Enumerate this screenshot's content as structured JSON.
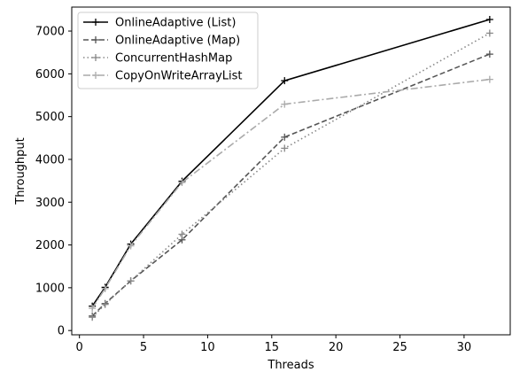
{
  "chart_data": {
    "type": "line",
    "xlabel": "Threads",
    "ylabel": "Throughput",
    "xlim": [
      -0.6,
      33.6
    ],
    "ylim": [
      -100,
      7560
    ],
    "xticks": [
      0,
      5,
      10,
      15,
      20,
      25,
      30
    ],
    "yticks": [
      0,
      1000,
      2000,
      3000,
      4000,
      5000,
      6000,
      7000
    ],
    "legend_position": "top-left",
    "grid": false,
    "x": [
      1,
      2,
      4,
      8,
      16,
      32
    ],
    "series": [
      {
        "name": "OnlineAdaptive (List)",
        "values": [
          570,
          1010,
          2020,
          3490,
          5840,
          7270
        ],
        "color": "#000000",
        "linestyle": "solid"
      },
      {
        "name": "OnlineAdaptive (Map)",
        "values": [
          340,
          630,
          1160,
          2120,
          4520,
          6460
        ],
        "color": "#555555",
        "linestyle": "dashed"
      },
      {
        "name": "ConcurrentHashMap",
        "values": [
          310,
          610,
          1160,
          2250,
          4260,
          6950
        ],
        "color": "#888888",
        "linestyle": "dotted"
      },
      {
        "name": "CopyOnWriteArrayList",
        "values": [
          520,
          980,
          1980,
          3460,
          5290,
          5870
        ],
        "color": "#aaaaaa",
        "linestyle": "dashdot"
      }
    ]
  }
}
